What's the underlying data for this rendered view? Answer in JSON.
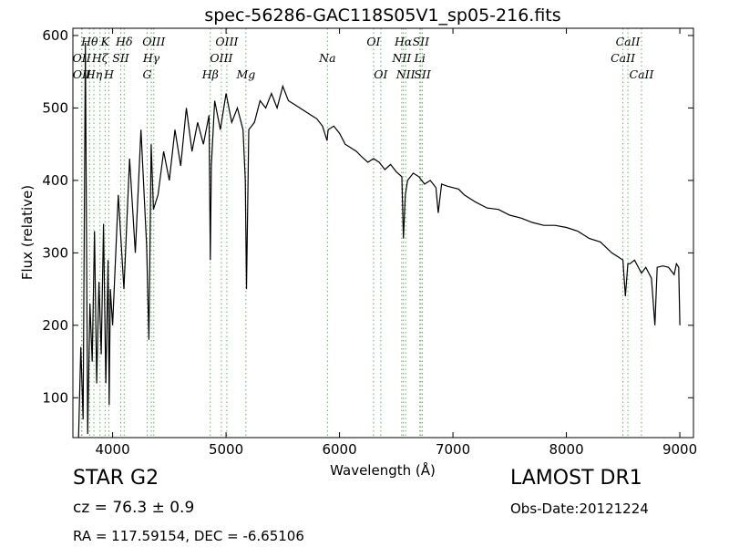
{
  "chart_data": {
    "type": "line",
    "title": "spec-56286-GAC118S05V1_sp05-216.fits",
    "xlabel": "Wavelength (Å)",
    "ylabel": "Flux (relative)",
    "xlim": [
      3650,
      9120
    ],
    "ylim": [
      45,
      610
    ],
    "xticks": [
      4000,
      5000,
      6000,
      7000,
      8000,
      9000
    ],
    "yticks": [
      100,
      200,
      300,
      400,
      500,
      600
    ],
    "grid": false,
    "series": [
      {
        "color": "#000000",
        "x": [
          3700,
          3720,
          3740,
          3760,
          3780,
          3800,
          3820,
          3840,
          3860,
          3880,
          3900,
          3920,
          3940,
          3960,
          3970,
          3980,
          4000,
          4050,
          4100,
          4150,
          4200,
          4250,
          4300,
          4320,
          4340,
          4360,
          4400,
          4450,
          4500,
          4550,
          4600,
          4650,
          4700,
          4750,
          4800,
          4850,
          4861,
          4870,
          4900,
          4950,
          5000,
          5050,
          5100,
          5150,
          5170,
          5180,
          5200,
          5250,
          5300,
          5350,
          5400,
          5450,
          5500,
          5550,
          5600,
          5650,
          5700,
          5750,
          5800,
          5850,
          5890,
          5900,
          5950,
          6000,
          6050,
          6100,
          6150,
          6200,
          6250,
          6300,
          6350,
          6400,
          6450,
          6500,
          6550,
          6563,
          6580,
          6600,
          6650,
          6700,
          6750,
          6800,
          6850,
          6870,
          6900,
          6950,
          7000,
          7050,
          7100,
          7150,
          7200,
          7300,
          7400,
          7500,
          7600,
          7700,
          7800,
          7900,
          8000,
          8100,
          8200,
          8300,
          8400,
          8450,
          8498,
          8520,
          8542,
          8560,
          8600,
          8662,
          8700,
          8750,
          8780,
          8800,
          8850,
          8900,
          8950,
          8970,
          8990,
          9000
        ],
        "y": [
          45,
          170,
          70,
          590,
          50,
          230,
          150,
          330,
          120,
          260,
          160,
          340,
          120,
          290,
          90,
          250,
          200,
          380,
          250,
          430,
          300,
          470,
          310,
          180,
          450,
          360,
          380,
          440,
          400,
          470,
          420,
          500,
          440,
          480,
          450,
          490,
          290,
          420,
          510,
          470,
          520,
          480,
          500,
          470,
          400,
          250,
          470,
          480,
          510,
          500,
          520,
          500,
          530,
          510,
          505,
          500,
          495,
          490,
          485,
          475,
          455,
          470,
          475,
          465,
          450,
          445,
          440,
          432,
          425,
          430,
          425,
          415,
          422,
          412,
          405,
          320,
          380,
          400,
          410,
          405,
          395,
          400,
          390,
          355,
          395,
          392,
          390,
          388,
          380,
          375,
          370,
          362,
          360,
          352,
          348,
          342,
          338,
          338,
          335,
          330,
          320,
          315,
          300,
          295,
          290,
          240,
          285,
          285,
          290,
          272,
          280,
          265,
          200,
          280,
          282,
          280,
          270,
          285,
          280,
          200
        ]
      }
    ],
    "lines": [
      {
        "name": "OII",
        "x": 3727,
        "label_row": 2,
        "style": "dotted"
      },
      {
        "name": "OII",
        "x": 3729,
        "label_row": 3,
        "style": "dotted"
      },
      {
        "name": "Hθ",
        "x": 3797,
        "label_row": 1,
        "style": "dotted"
      },
      {
        "name": "Hη",
        "x": 3835,
        "label_row": 3,
        "style": "dotted"
      },
      {
        "name": "K",
        "x": 3934,
        "label_row": 1,
        "style": "dotted"
      },
      {
        "name": "Hζ",
        "x": 3889,
        "label_row": 2,
        "style": "dotted"
      },
      {
        "name": "SII",
        "x": 4072,
        "label_row": 2,
        "style": "dotted"
      },
      {
        "name": "H",
        "x": 3968,
        "label_row": 3,
        "style": "dotted"
      },
      {
        "name": "Hδ",
        "x": 4102,
        "label_row": 1,
        "style": "dotted"
      },
      {
        "name": "OIII",
        "x": 4363,
        "label_row": 1,
        "style": "dotted"
      },
      {
        "name": "Hγ",
        "x": 4341,
        "label_row": 2,
        "style": "dotted"
      },
      {
        "name": "G",
        "x": 4305,
        "label_row": 3,
        "style": "dotted"
      },
      {
        "name": "OIII",
        "x": 5007,
        "label_row": 1,
        "style": "dotted"
      },
      {
        "name": "OIII",
        "x": 4959,
        "label_row": 2,
        "style": "dotted"
      },
      {
        "name": "Hβ",
        "x": 4861,
        "label_row": 3,
        "style": "dotted"
      },
      {
        "name": "Mg",
        "x": 5175,
        "label_row": 3,
        "style": "dotted"
      },
      {
        "name": "Na",
        "x": 5894,
        "label_row": 2,
        "style": "dotted"
      },
      {
        "name": "OI",
        "x": 6300,
        "label_row": 1,
        "style": "dotted"
      },
      {
        "name": "OI",
        "x": 6364,
        "label_row": 3,
        "style": "dotted"
      },
      {
        "name": "Hα",
        "x": 6563,
        "label_row": 1,
        "style": "dotted"
      },
      {
        "name": "SII",
        "x": 6717,
        "label_row": 1,
        "style": "dotted"
      },
      {
        "name": "NII",
        "x": 6548,
        "label_row": 2,
        "style": "dotted"
      },
      {
        "name": "Li",
        "x": 6708,
        "label_row": 2,
        "style": "dotted"
      },
      {
        "name": "NII",
        "x": 6583,
        "label_row": 3,
        "style": "dotted"
      },
      {
        "name": "SII",
        "x": 6731,
        "label_row": 3,
        "style": "dotted"
      },
      {
        "name": "CaII",
        "x": 8542,
        "label_row": 1,
        "style": "dotted"
      },
      {
        "name": "CaII",
        "x": 8498,
        "label_row": 2,
        "style": "dotted"
      },
      {
        "name": "CaII",
        "x": 8662,
        "label_row": 3,
        "style": "dotted"
      }
    ],
    "line_color": "#5cb85c"
  },
  "footer": {
    "class_text": "STAR   G2",
    "cz_text": "cz = 76.3  ± 0.9",
    "radec_text": "RA = 117.59154, DEC = -6.65106",
    "survey_text": "LAMOST DR1",
    "obsdate_text": "Obs-Date:20121224"
  }
}
